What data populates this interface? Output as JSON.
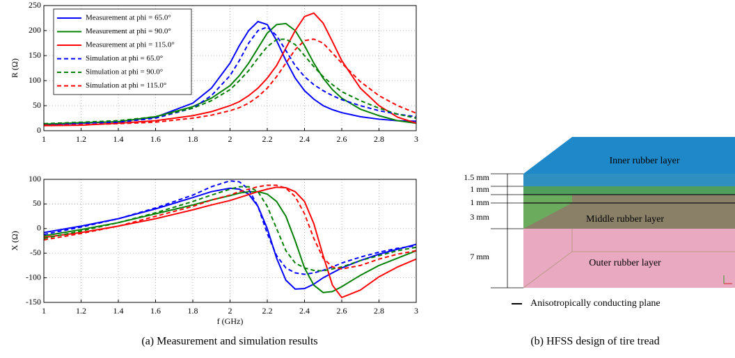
{
  "chart_data": [
    {
      "type": "line",
      "ylabel": "R (Ω)",
      "legend": "upper left",
      "grid": true,
      "x": [
        1,
        1.2,
        1.4,
        1.6,
        1.8,
        1.9,
        2.0,
        2.05,
        2.1,
        2.15,
        2.2,
        2.25,
        2.3,
        2.35,
        2.4,
        2.45,
        2.5,
        2.55,
        2.6,
        2.7,
        2.8,
        2.9,
        3.0
      ],
      "xlim": [
        1,
        3
      ],
      "xticks": [
        1,
        1.2,
        1.4,
        1.6,
        1.8,
        2,
        2.2,
        2.4,
        2.6,
        2.8,
        3
      ],
      "ylim": [
        0,
        250
      ],
      "yticks": [
        0,
        50,
        100,
        150,
        200,
        250
      ],
      "series": [
        {
          "name": "Measurement at phi = 65.0°",
          "color": "#0000ff",
          "style": "solid",
          "values": [
            12,
            15,
            18,
            27,
            55,
            85,
            135,
            170,
            200,
            218,
            212,
            180,
            140,
            105,
            80,
            63,
            50,
            42,
            36,
            28,
            23,
            20,
            19
          ]
        },
        {
          "name": "Measurement at phi = 90.0°",
          "color": "#008000",
          "style": "solid",
          "values": [
            13,
            16,
            18,
            28,
            48,
            65,
            90,
            110,
            135,
            165,
            195,
            212,
            214,
            200,
            170,
            135,
            105,
            82,
            65,
            43,
            30,
            20,
            15
          ]
        },
        {
          "name": "Measurement at phi = 115.0°",
          "color": "#ff0000",
          "style": "solid",
          "values": [
            10,
            11,
            15,
            20,
            30,
            38,
            50,
            58,
            70,
            85,
            105,
            130,
            165,
            200,
            228,
            235,
            215,
            178,
            140,
            85,
            50,
            27,
            15
          ]
        },
        {
          "name": "Simulation at phi = 65.0°",
          "color": "#0000ff",
          "style": "dashed",
          "values": [
            13,
            15,
            17,
            25,
            45,
            70,
            110,
            140,
            175,
            200,
            207,
            190,
            160,
            130,
            108,
            92,
            80,
            70,
            62,
            50,
            40,
            33,
            28
          ]
        },
        {
          "name": "Simulation at phi = 90.0°",
          "color": "#008000",
          "style": "dashed",
          "values": [
            14,
            17,
            20,
            28,
            45,
            60,
            82,
            100,
            120,
            145,
            168,
            182,
            183,
            172,
            150,
            128,
            108,
            92,
            78,
            60,
            45,
            33,
            25
          ]
        },
        {
          "name": "Simulation at phi = 115.0°",
          "color": "#ff0000",
          "style": "dashed",
          "values": [
            11,
            12,
            14,
            17,
            25,
            31,
            40,
            46,
            55,
            68,
            85,
            108,
            135,
            162,
            180,
            183,
            175,
            155,
            135,
            98,
            70,
            50,
            35
          ]
        }
      ]
    },
    {
      "type": "line",
      "ylabel": "X (Ω)",
      "xlabel": "f (GHz)",
      "grid": true,
      "x": [
        1,
        1.2,
        1.4,
        1.6,
        1.8,
        1.9,
        2.0,
        2.05,
        2.1,
        2.15,
        2.2,
        2.25,
        2.3,
        2.35,
        2.4,
        2.45,
        2.5,
        2.55,
        2.6,
        2.7,
        2.8,
        2.9,
        3.0
      ],
      "xlim": [
        1,
        3
      ],
      "xticks": [
        1,
        1.2,
        1.4,
        1.6,
        1.8,
        2,
        2.2,
        2.4,
        2.6,
        2.8,
        3
      ],
      "ylim": [
        -150,
        100
      ],
      "yticks": [
        -150,
        -100,
        -50,
        0,
        50,
        100
      ],
      "series": [
        {
          "color": "#0000ff",
          "style": "solid",
          "values": [
            -8,
            5,
            20,
            40,
            63,
            75,
            82,
            80,
            70,
            45,
            0,
            -60,
            -105,
            -123,
            -122,
            -113,
            -100,
            -90,
            -80,
            -65,
            -52,
            -42,
            -32
          ]
        },
        {
          "color": "#008000",
          "style": "solid",
          "values": [
            -15,
            -2,
            12,
            30,
            48,
            58,
            67,
            72,
            75,
            75,
            70,
            55,
            25,
            -25,
            -80,
            -115,
            -130,
            -128,
            -118,
            -95,
            -75,
            -60,
            -45
          ]
        },
        {
          "color": "#ff0000",
          "style": "solid",
          "values": [
            -18,
            -8,
            5,
            20,
            38,
            48,
            57,
            63,
            69,
            75,
            80,
            84,
            83,
            75,
            55,
            10,
            -55,
            -115,
            -140,
            -125,
            -98,
            -78,
            -62
          ]
        },
        {
          "color": "#0000ff",
          "style": "dashed",
          "values": [
            -12,
            3,
            20,
            42,
            68,
            85,
            97,
            95,
            80,
            45,
            -10,
            -55,
            -80,
            -90,
            -93,
            -90,
            -85,
            -78,
            -70,
            -58,
            -48,
            -40,
            -35
          ]
        },
        {
          "color": "#008000",
          "style": "dashed",
          "values": [
            -20,
            -5,
            12,
            32,
            55,
            68,
            80,
            85,
            85,
            75,
            45,
            0,
            -45,
            -70,
            -80,
            -85,
            -86,
            -82,
            -78,
            -65,
            -55,
            -45,
            -38
          ]
        },
        {
          "color": "#ff0000",
          "style": "dashed",
          "values": [
            -23,
            -10,
            5,
            25,
            45,
            58,
            68,
            75,
            80,
            85,
            88,
            88,
            82,
            65,
            30,
            -20,
            -60,
            -78,
            -82,
            -75,
            -62,
            -52,
            -45
          ]
        }
      ]
    }
  ],
  "diagram": {
    "layers": [
      "Inner rubber layer",
      "Middle rubber layer",
      "Outer rubber layer"
    ],
    "dimensions": [
      "1.5 mm",
      "1 mm",
      "1 mm",
      "3 mm",
      "7 mm"
    ],
    "legend": "Anisotropically conducting plane"
  },
  "captions": [
    "(a) Measurement and simulation results",
    "(b) HFSS design of tire tread"
  ]
}
